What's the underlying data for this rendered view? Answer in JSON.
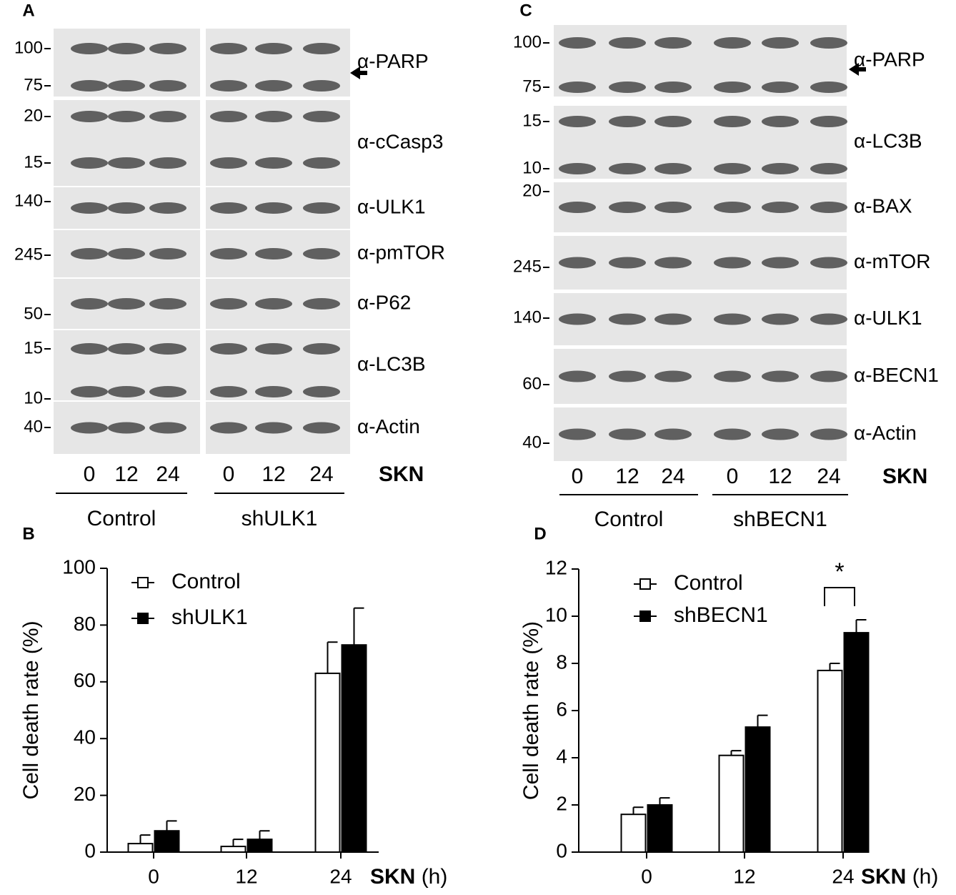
{
  "blots": [
    {
      "label": "A",
      "strips": [
        {
          "antibody": "α-PARP",
          "markers": [
            "100",
            "75"
          ]
        },
        {
          "antibody": "α-cCasp3",
          "markers": [
            "20",
            "15"
          ]
        },
        {
          "antibody": "α-ULK1",
          "markers": [
            "140"
          ]
        },
        {
          "antibody": "α-pmTOR",
          "markers": [
            "245"
          ]
        },
        {
          "antibody": "α-P62",
          "markers": [
            "50"
          ]
        },
        {
          "antibody": "α-LC3B",
          "markers": [
            "15",
            "10"
          ]
        },
        {
          "antibody": "α-Actin",
          "markers": [
            "40"
          ]
        }
      ],
      "lanes": [
        "0",
        "12",
        "24",
        "0",
        "12",
        "24"
      ],
      "treatment": "SKN",
      "groups": [
        "Control",
        "shULK1"
      ]
    },
    {
      "label": "C",
      "strips": [
        {
          "antibody": "α-PARP",
          "markers": [
            "100",
            "75"
          ]
        },
        {
          "antibody": "α-LC3B",
          "markers": [
            "15",
            "10"
          ]
        },
        {
          "antibody": "α-BAX",
          "markers": [
            "20"
          ]
        },
        {
          "antibody": "α-mTOR",
          "markers": [
            "245"
          ]
        },
        {
          "antibody": "α-ULK1",
          "markers": [
            "140"
          ]
        },
        {
          "antibody": "α-BECN1",
          "markers": [
            "60"
          ]
        },
        {
          "antibody": "α-Actin",
          "markers": [
            "40"
          ]
        }
      ],
      "lanes": [
        "0",
        "12",
        "24",
        "0",
        "12",
        "24"
      ],
      "treatment": "SKN",
      "groups": [
        "Control",
        "shBECN1"
      ]
    }
  ],
  "chart_data": [
    {
      "type": "bar",
      "label": "B",
      "ylabel": "Cell death rate (%)",
      "xlabel": "SKN",
      "xlabel_unit": "(h)",
      "categories": [
        "0",
        "12",
        "24"
      ],
      "series": [
        {
          "name": "Control",
          "color": "#ffffff",
          "values": [
            3,
            2,
            63
          ],
          "errors": [
            3,
            2.5,
            11
          ]
        },
        {
          "name": "shULK1",
          "color": "#000000",
          "values": [
            7.5,
            4.5,
            73
          ],
          "errors": [
            3.5,
            3,
            13
          ]
        }
      ],
      "ylim": [
        0,
        100
      ],
      "yticks": [
        0,
        20,
        40,
        60,
        80,
        100
      ]
    },
    {
      "type": "bar",
      "label": "D",
      "ylabel": "Cell death rate (%)",
      "xlabel": "SKN",
      "xlabel_unit": "(h)",
      "categories": [
        "0",
        "12",
        "24"
      ],
      "series": [
        {
          "name": "Control",
          "color": "#ffffff",
          "values": [
            1.6,
            4.1,
            7.7
          ],
          "errors": [
            0.3,
            0.2,
            0.3
          ]
        },
        {
          "name": "shBECN1",
          "color": "#000000",
          "values": [
            2.0,
            5.3,
            9.3
          ],
          "errors": [
            0.3,
            0.5,
            0.55
          ]
        }
      ],
      "ylim": [
        0,
        12
      ],
      "yticks": [
        0,
        2,
        4,
        6,
        8,
        10,
        12
      ],
      "annotations": [
        {
          "text": "*"
        }
      ]
    }
  ]
}
